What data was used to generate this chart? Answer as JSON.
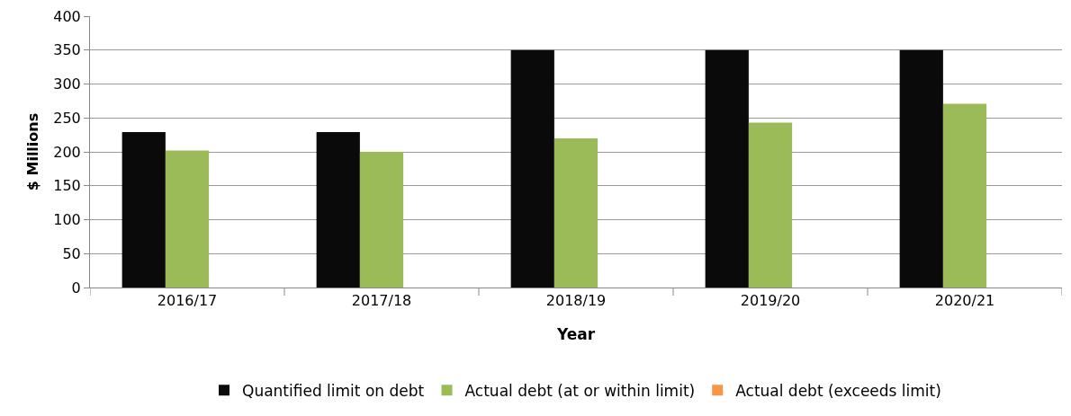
{
  "chart_data": {
    "type": "bar",
    "xlabel": "Year",
    "ylabel": "$ Millions",
    "categories": [
      "2016/17",
      "2017/18",
      "2018/19",
      "2019/20",
      "2020/21"
    ],
    "series": [
      {
        "name": "Quantified limit on debt",
        "color": "#0a0a0a",
        "values": [
          229,
          229,
          350,
          350,
          350
        ]
      },
      {
        "name": "Actual debt (at or within limit)",
        "color": "#9bbb59",
        "values": [
          202,
          200,
          220,
          243,
          271
        ]
      },
      {
        "name": "Actual debt (exceeds limit)",
        "color": "#f79646",
        "values": [
          null,
          null,
          null,
          null,
          null
        ]
      }
    ],
    "ylim": [
      0,
      400
    ],
    "yticks": [
      0,
      50,
      100,
      150,
      200,
      250,
      300,
      350,
      400
    ],
    "grid": "y",
    "legend": "bottom"
  }
}
